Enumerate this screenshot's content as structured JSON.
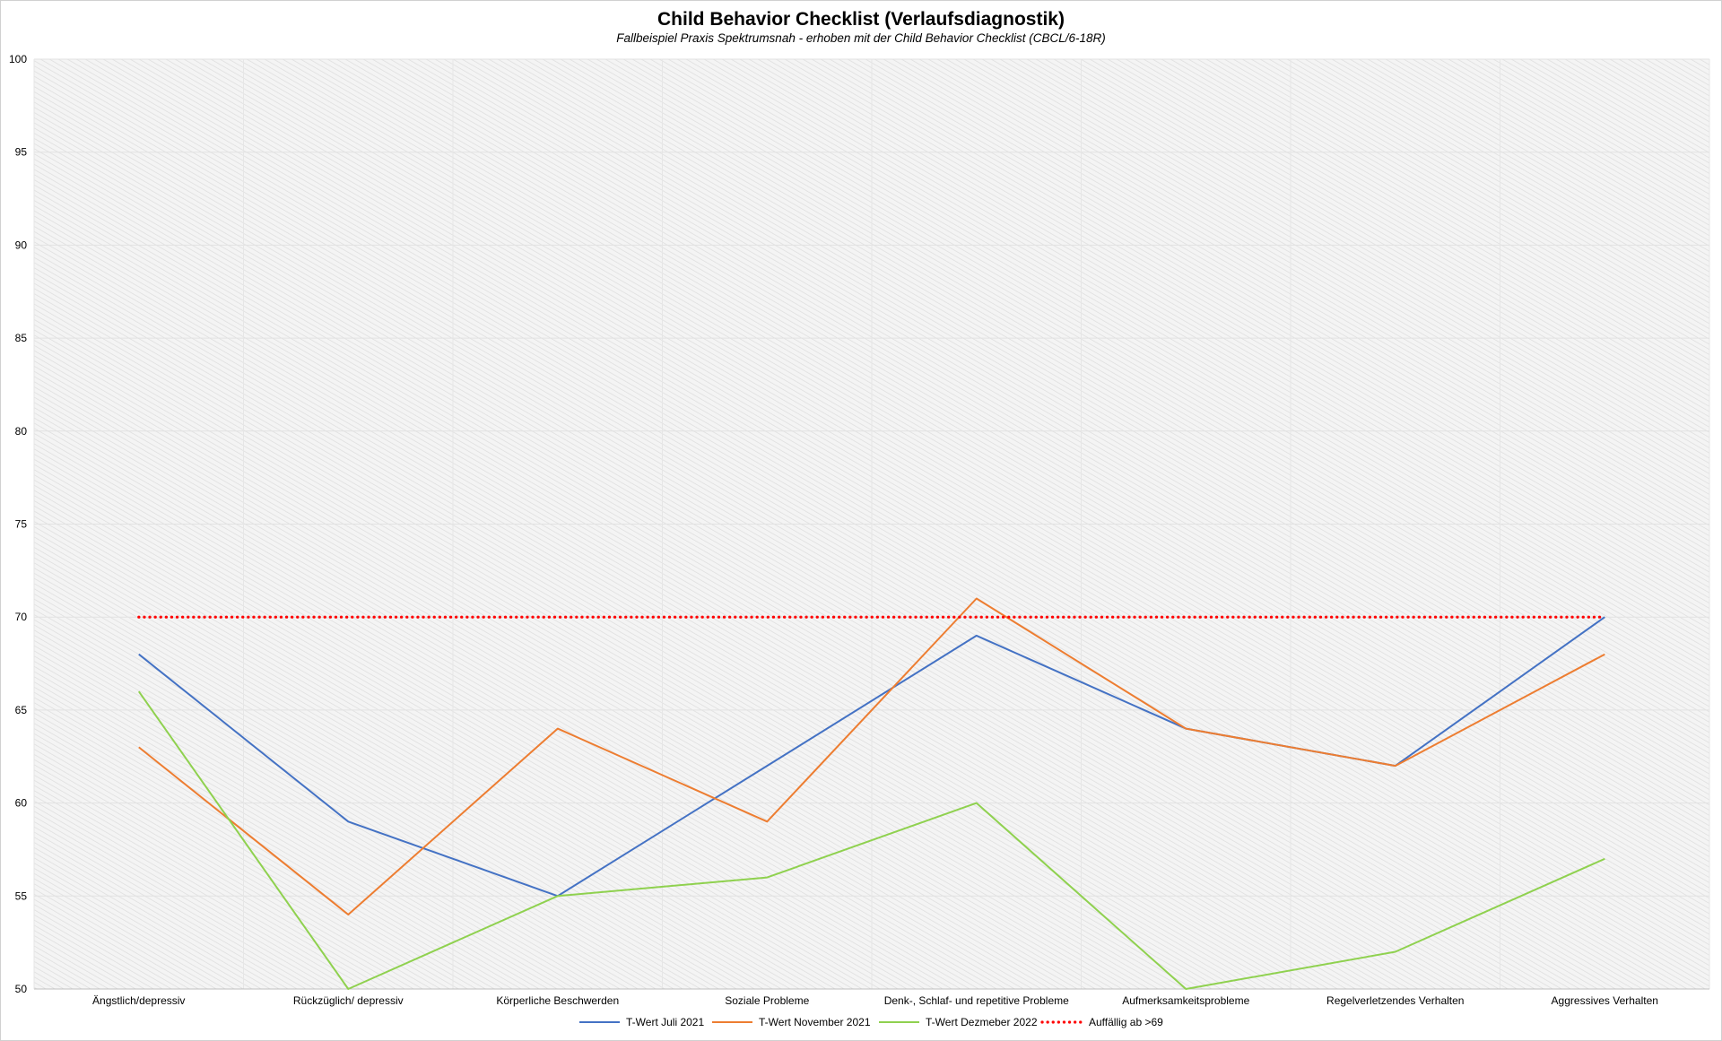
{
  "chart_data": {
    "type": "line",
    "title": "Child Behavior Checklist (Verlaufsdiagnostik)",
    "subtitle": "Fallbeispiel Praxis Spektrumsnah - erhoben mit der Child Behavior Checklist (CBCL/6-18R)",
    "xlabel": "",
    "ylabel": "",
    "ylim": [
      50,
      100
    ],
    "yticks": [
      50,
      55,
      60,
      65,
      70,
      75,
      80,
      85,
      90,
      95,
      100
    ],
    "grid": true,
    "legend_position": "bottom",
    "categories": [
      "Ängstlich/depressiv",
      "Rückzüglich/ depressiv",
      "Körperliche Beschwerden",
      "Soziale Probleme",
      "Denk-, Schlaf- und repetitive Probleme",
      "Aufmerksamkeitsprobleme",
      "Regelverletzendes Verhalten",
      "Aggressives Verhalten"
    ],
    "series": [
      {
        "name": "T-Wert Juli 2021",
        "color": "#4472c4",
        "style": "solid",
        "values": [
          68,
          59,
          55,
          62,
          69,
          64,
          62,
          70
        ]
      },
      {
        "name": "T-Wert November 2021",
        "color": "#ed7d31",
        "style": "solid",
        "values": [
          63,
          54,
          64,
          59,
          71,
          64,
          62,
          68
        ]
      },
      {
        "name": "T-Wert Dezmeber 2022",
        "color": "#8fd14f",
        "style": "solid",
        "values": [
          66,
          50,
          55,
          56,
          60,
          50,
          52,
          57
        ]
      },
      {
        "name": "Auffällig ab >69",
        "color": "#ff0000",
        "style": "dotted",
        "values": [
          70,
          70,
          70,
          70,
          70,
          70,
          70,
          70
        ]
      }
    ]
  }
}
